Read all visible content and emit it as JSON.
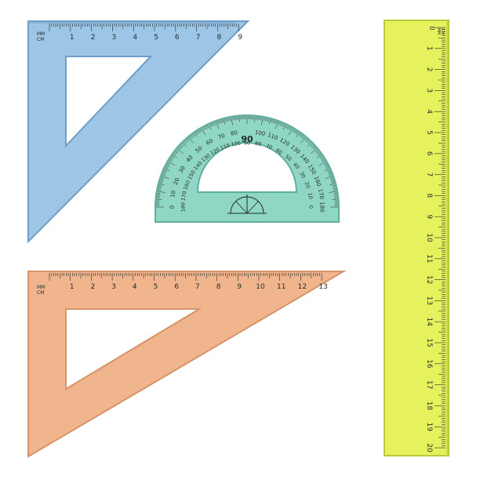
{
  "unit_label_top": "MM",
  "unit_label_bottom": "CM",
  "colors": {
    "background": "#ffffff",
    "blue_fill": "#9cc5e6",
    "blue_edge": "#6f9fc8",
    "orange_fill": "#f1b58e",
    "orange_edge": "#d7936a",
    "green_fill": "#8fd6c4",
    "green_edge": "#5eaf9b",
    "yellow_fill": "#e6f25d",
    "yellow_edge": "#b9c93a",
    "ink": "#1f2a2a"
  },
  "blue_triangle": {
    "name": "blue set square",
    "cm_max": 9,
    "cm_labels": [
      "1",
      "2",
      "3",
      "4",
      "5",
      "6",
      "7",
      "8",
      "9"
    ]
  },
  "orange_triangle": {
    "name": "orange set square",
    "cm_max": 13,
    "cm_labels": [
      "1",
      "2",
      "3",
      "4",
      "5",
      "6",
      "7",
      "8",
      "9",
      "10",
      "11",
      "12",
      "13"
    ]
  },
  "protractor": {
    "name": "green protractor",
    "outer_labels": [
      "0",
      "10",
      "20",
      "30",
      "40",
      "50",
      "60",
      "70",
      "80",
      "90",
      "100",
      "110",
      "120",
      "130",
      "140",
      "150",
      "160",
      "170",
      "180"
    ],
    "inner_labels": [
      "180",
      "170",
      "160",
      "150",
      "140",
      "130",
      "120",
      "110",
      "100",
      "90",
      "80",
      "70",
      "60",
      "50",
      "40",
      "30",
      "20",
      "10",
      "0"
    ],
    "center_label": "90"
  },
  "yellow_ruler": {
    "name": "yellow ruler",
    "zero_label": "0",
    "cm_max": 20,
    "cm_labels": [
      "1",
      "2",
      "3",
      "4",
      "5",
      "6",
      "7",
      "8",
      "9",
      "10",
      "11",
      "12",
      "13",
      "14",
      "15",
      "16",
      "17",
      "18",
      "19",
      "20"
    ]
  }
}
